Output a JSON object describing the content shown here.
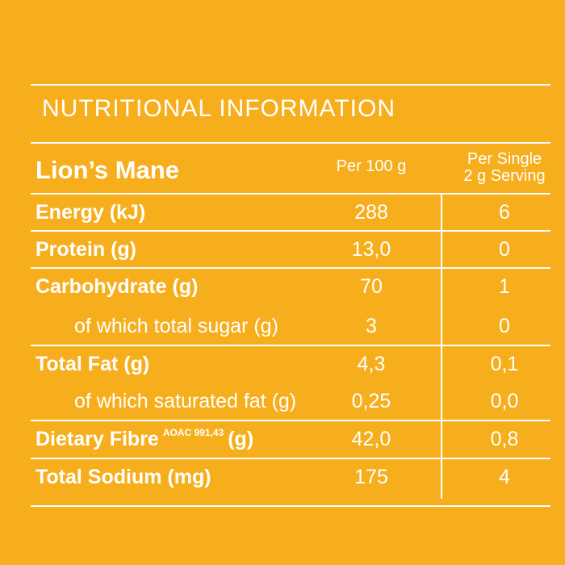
{
  "header": {
    "title": "NUTRITIONAL INFORMATION",
    "product_name": "Lion’s Mane",
    "col_per_100g": "Per 100 g",
    "col_per_serving_line1": "Per Single",
    "col_per_serving_line2": "2 g Serving"
  },
  "rows": [
    {
      "label": "Energy (kJ)",
      "per100": "288",
      "serving": "6"
    },
    {
      "label": "Protein (g)",
      "per100": "13,0",
      "serving": "0"
    },
    {
      "label": "Carbohydrate (g)",
      "per100": "70",
      "serving": "1"
    },
    {
      "label": "of which total sugar (g)",
      "per100": "3",
      "serving": "0"
    },
    {
      "label": "Total Fat (g)",
      "per100": "4,3",
      "serving": "0,1"
    },
    {
      "label": "of which saturated fat (g)",
      "per100": "0,25",
      "serving": "0,0"
    },
    {
      "label": "Dietary Fibre",
      "label_sup": "AOAC 991,43",
      "label_suffix": "(g)",
      "per100": "42,0",
      "serving": "0,8"
    },
    {
      "label": "Total Sodium (mg)",
      "per100": "175",
      "serving": "4"
    }
  ],
  "colors": {
    "background": "#f7ae1c",
    "text": "#ffffff"
  }
}
